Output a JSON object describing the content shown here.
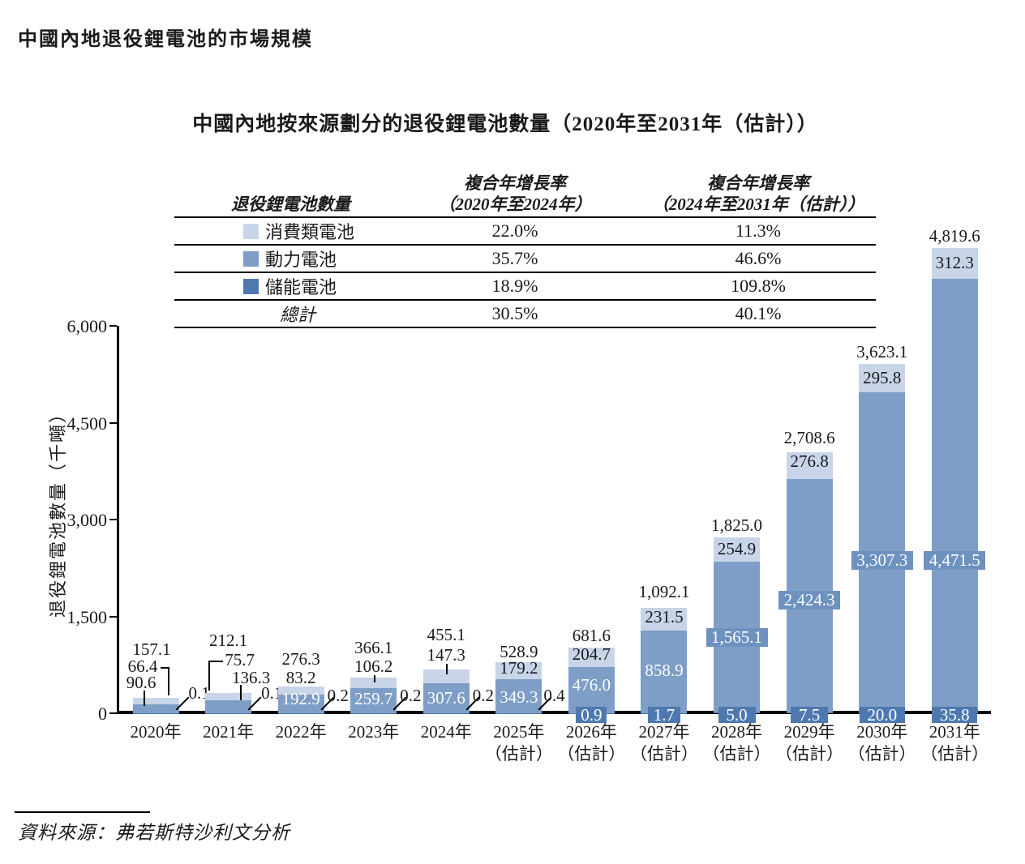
{
  "page": {
    "title": "中國內地退役鋰電池的市場規模",
    "source_note": "資料來源：弗若斯特沙利文分析"
  },
  "table": {
    "header": {
      "col1": "退役鋰電池數量",
      "col2_line1": "複合年增長率",
      "col2_line2": "（2020年至2024年）",
      "col3_line1": "複合年增長率",
      "col3_line2": "（2024年至2031年（估計））"
    },
    "rows": [
      {
        "label": "消費類電池",
        "color": "#c8d5e8",
        "cagr_2020_2024": "22.0%",
        "cagr_2024_2031": "11.3%"
      },
      {
        "label": "動力電池",
        "color": "#7e9ec7",
        "cagr_2020_2024": "35.7%",
        "cagr_2024_2031": "46.6%"
      },
      {
        "label": "儲能電池",
        "color": "#4e79b0",
        "cagr_2020_2024": "18.9%",
        "cagr_2024_2031": "109.8%"
      },
      {
        "label": "總計",
        "color": null,
        "cagr_2020_2024": "30.5%",
        "cagr_2024_2031": "40.1%"
      }
    ]
  },
  "chart_data": {
    "type": "bar",
    "stacked": true,
    "title": "中國內地按來源劃分的退役鋰電池數量（2020年至2031年（估計））",
    "ylabel": "退役鋰電池數量（千噸）",
    "ylim": [
      0,
      6000
    ],
    "ytick_labels": [
      "0",
      "1,500",
      "3,000",
      "4,500",
      "6,000"
    ],
    "grid": false,
    "legend_position": "table-top",
    "estimate_note": "（估計）",
    "categories": [
      {
        "year": "2020年"
      },
      {
        "year": "2021年"
      },
      {
        "year": "2022年"
      },
      {
        "year": "2023年"
      },
      {
        "year": "2024年"
      },
      {
        "year": "2025年",
        "note": "（估計）"
      },
      {
        "year": "2026年",
        "note": "（估計）"
      },
      {
        "year": "2027年",
        "note": "（估計）"
      },
      {
        "year": "2028年",
        "note": "（估計）"
      },
      {
        "year": "2029年",
        "note": "（估計）"
      },
      {
        "year": "2030年",
        "note": "（估計）"
      },
      {
        "year": "2031年",
        "note": "（估計）"
      }
    ],
    "series": [
      {
        "name": "消費類電池",
        "color": "#c8d5e8",
        "values": [
          66.4,
          75.7,
          83.2,
          106.2,
          147.3,
          179.2,
          204.7,
          231.5,
          254.9,
          276.8,
          295.8,
          312.3
        ],
        "labels": [
          "66.4",
          "75.7",
          "83.2",
          "106.2",
          "147.3",
          "179.2",
          "204.7",
          "231.5",
          "254.9",
          "276.8",
          "295.8",
          "312.3"
        ]
      },
      {
        "name": "動力電池",
        "color": "#7e9ec7",
        "values": [
          90.6,
          136.3,
          192.9,
          259.7,
          307.6,
          349.3,
          476.0,
          858.9,
          1565.1,
          2424.3,
          3307.3,
          4471.5
        ],
        "labels": [
          "90.6",
          "136.3",
          "192.9",
          "259.7",
          "307.6",
          "349.3",
          "476.0",
          "858.9",
          "1,565.1",
          "2,424.3",
          "3,307.3",
          "4,471.5"
        ]
      },
      {
        "name": "儲能電池",
        "color": "#4e79b0",
        "values": [
          0.1,
          0.1,
          0.2,
          0.2,
          0.2,
          0.4,
          0.9,
          1.7,
          5.0,
          7.5,
          20.0,
          35.8
        ],
        "labels": [
          "0.1",
          "0.1",
          "0.2",
          "0.2",
          "0.2",
          "0.4",
          "0.9",
          "1.7",
          "5.0",
          "7.5",
          "20.0",
          "35.8"
        ]
      }
    ],
    "totals": [
      157.1,
      212.1,
      276.3,
      366.1,
      455.1,
      528.9,
      681.6,
      1092.1,
      1825.0,
      2708.6,
      3623.1,
      4819.6
    ],
    "total_labels": [
      "157.1",
      "212.1",
      "276.3",
      "366.1",
      "455.1",
      "528.9",
      "681.6",
      "1,092.1",
      "1,825.0",
      "2,708.6",
      "3,623.1",
      "4,819.6"
    ]
  }
}
